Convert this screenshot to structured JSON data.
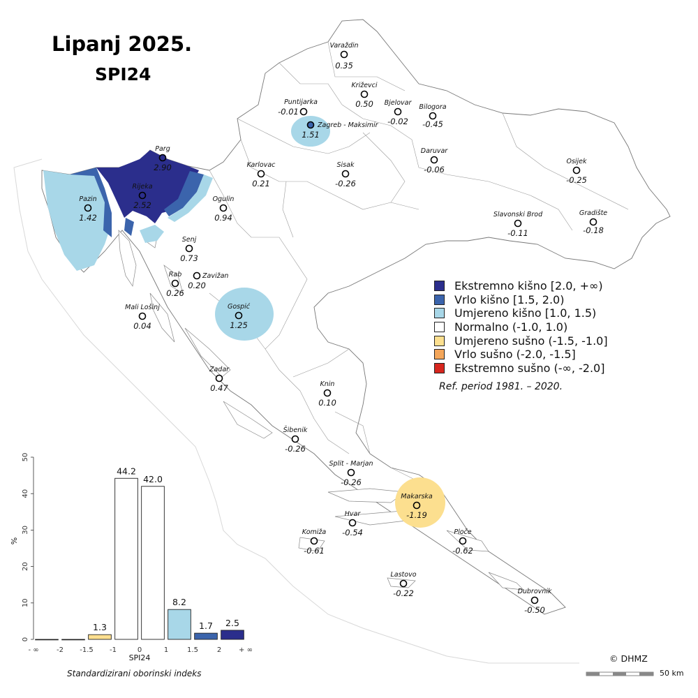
{
  "title": "Lipanj 2025.",
  "subtitle": "SPI24",
  "legend": [
    {
      "label": "Ekstremno kišno [2.0, +∞)",
      "color": "#2b2e8c"
    },
    {
      "label": "Vrlo kišno [1.5, 2.0)",
      "color": "#3b64ac"
    },
    {
      "label": "Umjereno kišno [1.0, 1.5)",
      "color": "#a8d7e8"
    },
    {
      "label": "Normalno (-1.0, 1.0)",
      "color": "#ffffff"
    },
    {
      "label": "Umjereno sušno (-1.5, -1.0]",
      "color": "#fcdf8f"
    },
    {
      "label": "Vrlo sušno (-2.0, -1.5]",
      "color": "#f4a65a"
    },
    {
      "label": "Ekstremno sušno (-∞, -2.0]",
      "color": "#d7261e"
    }
  ],
  "reference_period": "Ref. period 1981. – 2020.",
  "copyright": "© DHMZ",
  "scale_label": "50 km",
  "stations": [
    {
      "name": "Varaždin",
      "value": "0.35"
    },
    {
      "name": "Križevci",
      "value": "0.50"
    },
    {
      "name": "Puntijarka",
      "value": "-0.01"
    },
    {
      "name": "Bjelovar",
      "value": "-0.02"
    },
    {
      "name": "Bilogora",
      "value": "-0.45"
    },
    {
      "name": "Zagreb - Maksimir",
      "value": "1.51"
    },
    {
      "name": "Parg",
      "value": "2.90"
    },
    {
      "name": "Karlovac",
      "value": "0.21"
    },
    {
      "name": "Sisak",
      "value": "-0.26"
    },
    {
      "name": "Daruvar",
      "value": "-0.06"
    },
    {
      "name": "Osijek",
      "value": "-0.25"
    },
    {
      "name": "Rijeka",
      "value": "2.52"
    },
    {
      "name": "Pazin",
      "value": "1.42"
    },
    {
      "name": "Ogulin",
      "value": "0.94"
    },
    {
      "name": "Slavonski Brod",
      "value": "-0.11"
    },
    {
      "name": "Gradište",
      "value": "-0.18"
    },
    {
      "name": "Senj",
      "value": "0.73"
    },
    {
      "name": "Rab",
      "value": "0.26"
    },
    {
      "name": "Zavižan",
      "value": "0.20"
    },
    {
      "name": "Mali Lošinj",
      "value": "0.04"
    },
    {
      "name": "Gospić",
      "value": "1.25"
    },
    {
      "name": "Zadar",
      "value": "0.47"
    },
    {
      "name": "Knin",
      "value": "0.10"
    },
    {
      "name": "Šibenik",
      "value": "-0.26"
    },
    {
      "name": "Split - Marjan",
      "value": "-0.26"
    },
    {
      "name": "Makarska",
      "value": "-1.19"
    },
    {
      "name": "Hvar",
      "value": "-0.54"
    },
    {
      "name": "Komiža",
      "value": "-0.61"
    },
    {
      "name": "Ploče",
      "value": "-0.62"
    },
    {
      "name": "Lastovo",
      "value": "-0.22"
    },
    {
      "name": "Dubrovnik",
      "value": "-0.50"
    }
  ],
  "chart_data": {
    "type": "bar",
    "ylabel": "%",
    "xlabel": "SPI24",
    "caption": "Standardizirani oborinski indeks",
    "ylim": [
      0,
      50
    ],
    "yticks": [
      "0",
      "10",
      "20",
      "30",
      "40",
      "50"
    ],
    "xticks": [
      "- ∞",
      "-2",
      "-1.5",
      "-1",
      "0",
      "1",
      "1.5",
      "2",
      "+ ∞"
    ],
    "values": [
      0,
      0,
      1.3,
      44.2,
      42.0,
      8.2,
      1.7,
      2.5
    ],
    "value_labels": [
      "",
      "",
      "1.3",
      "44.2",
      "42.0",
      "8.2",
      "1.7",
      "2.5"
    ],
    "colors": [
      "#d7261e",
      "#f4a65a",
      "#fcdf8f",
      "#ffffff",
      "#ffffff",
      "#a8d7e8",
      "#3b64ac",
      "#2b2e8c"
    ]
  }
}
